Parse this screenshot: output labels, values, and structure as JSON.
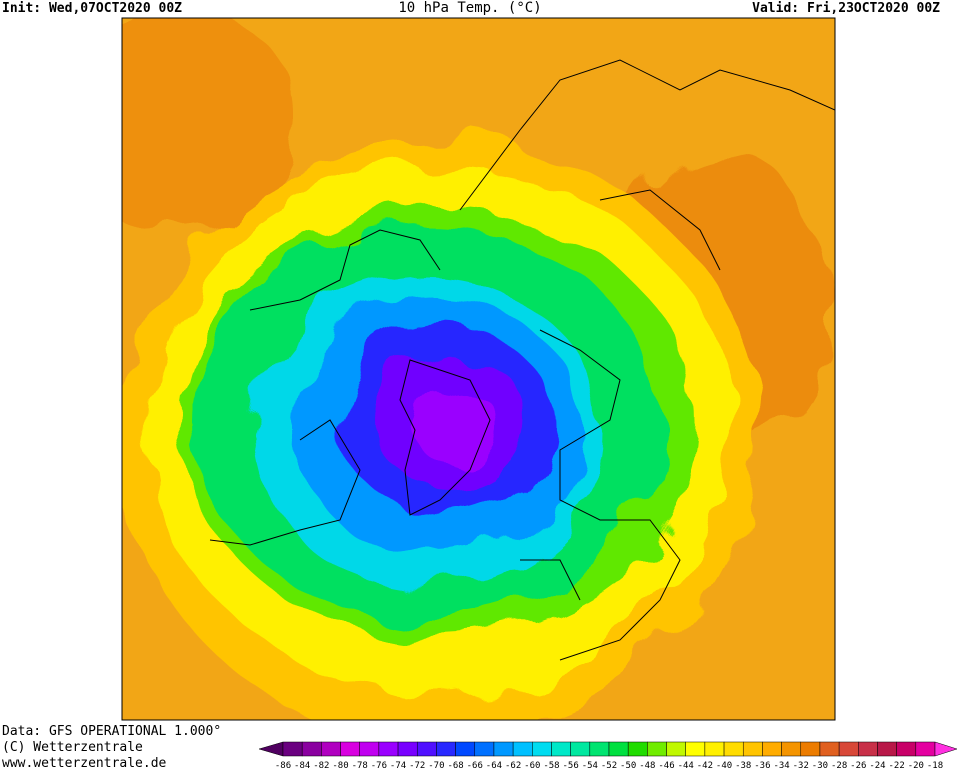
{
  "header": {
    "init": "Init: Wed,07OCT2020 00Z",
    "title": "10 hPa Temp. (°C)",
    "valid": "Valid: Fri,23OCT2020 00Z"
  },
  "footer": {
    "data": "Data: GFS OPERATIONAL 1.000°",
    "copyright": "(C) Wetterzentrale",
    "url": "www.wetterzentrale.de"
  },
  "legend": {
    "ticks": [
      -86,
      -84,
      -82,
      -80,
      -78,
      -76,
      -74,
      -72,
      -70,
      -68,
      -66,
      -64,
      -62,
      -60,
      -58,
      -56,
      -54,
      -52,
      -50,
      -48,
      -46,
      -44,
      -42,
      -40,
      -38,
      -36,
      -34,
      -32,
      -30,
      -28,
      -26,
      -24,
      -22,
      -20,
      -18
    ],
    "colors": [
      "#500060",
      "#6a0080",
      "#8a00a0",
      "#b000c0",
      "#d800e0",
      "#c000f0",
      "#9a00ff",
      "#7800ff",
      "#5010ff",
      "#2828ff",
      "#0048ff",
      "#0070ff",
      "#0098ff",
      "#00c0ff",
      "#00dcf0",
      "#00e8c8",
      "#00e8a0",
      "#00e470",
      "#00e040",
      "#20dc00",
      "#70ec00",
      "#c0f800",
      "#ffff00",
      "#fff000",
      "#ffdc00",
      "#ffc400",
      "#ffac00",
      "#f49400",
      "#ec7c00",
      "#e06020",
      "#d84838",
      "#c83048",
      "#b81848",
      "#c80068",
      "#e400a0",
      "#ff30e0"
    ]
  }
}
